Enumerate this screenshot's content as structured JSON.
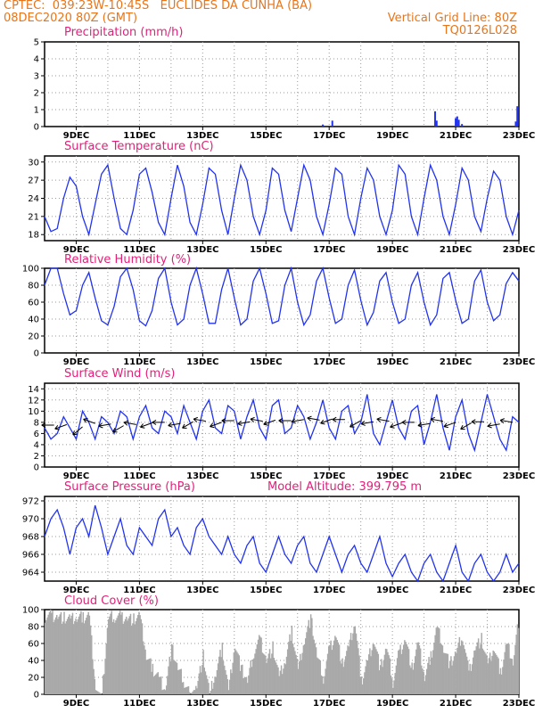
{
  "header": {
    "line1_left": "CPTEC:  039:23W-10:45S   EUCLIDES DA CUNHA (BA)",
    "line2_left": "08DEC2020 80Z (GMT)",
    "line2_right": "Vertical Grid Line: 80Z",
    "line3_right": "TQ0126L028"
  },
  "colors": {
    "line": "#2233ee",
    "title": "#e0217a",
    "header": "#e8751a",
    "cloud": "#a9a9a9",
    "wind_arrow": "#000000"
  },
  "chart_data": [
    {
      "id": "precip",
      "type": "bar",
      "title": "Precipitation (mm/h)",
      "x_ticks": [
        "9DEC",
        "11DEC",
        "13DEC",
        "15DEC",
        "17DEC",
        "19DEC",
        "21DEC",
        "23DEC"
      ],
      "ylim": [
        0,
        5
      ],
      "y_ticks": [
        0,
        1,
        2,
        3,
        4,
        5
      ],
      "grid": true,
      "x": [
        8.75,
        9.2,
        16.8,
        17.1,
        20.35,
        20.4,
        21.0,
        21.05,
        21.1,
        21.2,
        22.9,
        22.95
      ],
      "values": [
        0.05,
        0.03,
        0.12,
        0.35,
        0.9,
        0.35,
        0.5,
        0.6,
        0.4,
        0.15,
        0.3,
        1.2
      ]
    },
    {
      "id": "temp",
      "type": "line",
      "title": "Surface Temperature (nC)",
      "x_ticks": [
        "9DEC",
        "11DEC",
        "13DEC",
        "15DEC",
        "17DEC",
        "19DEC",
        "21DEC",
        "23DEC"
      ],
      "ylim": [
        17,
        31
      ],
      "y_ticks": [
        18,
        21,
        24,
        27,
        30
      ],
      "grid": true,
      "x": [
        8.0,
        8.2,
        8.4,
        8.6,
        8.8,
        9.0,
        9.2,
        9.4,
        9.6,
        9.8,
        10.0,
        10.2,
        10.4,
        10.6,
        10.8,
        11.0,
        11.2,
        11.4,
        11.6,
        11.8,
        12.0,
        12.2,
        12.4,
        12.6,
        12.8,
        13.0,
        13.2,
        13.4,
        13.6,
        13.8,
        14.0,
        14.2,
        14.4,
        14.6,
        14.8,
        15.0,
        15.2,
        15.4,
        15.6,
        15.8,
        16.0,
        16.2,
        16.4,
        16.6,
        16.8,
        17.0,
        17.2,
        17.4,
        17.6,
        17.8,
        18.0,
        18.2,
        18.4,
        18.6,
        18.8,
        19.0,
        19.2,
        19.4,
        19.6,
        19.8,
        20.0,
        20.2,
        20.4,
        20.6,
        20.8,
        21.0,
        21.2,
        21.4,
        21.6,
        21.8,
        22.0,
        22.2,
        22.4,
        22.6,
        22.8,
        23.0
      ],
      "values": [
        21,
        18.5,
        19,
        24,
        27.5,
        26,
        21,
        18,
        23,
        28,
        29.5,
        24,
        19,
        18,
        22,
        28,
        29,
        25,
        20,
        18,
        24,
        29.5,
        26,
        20,
        18,
        23,
        29,
        28,
        22,
        18,
        24,
        29.5,
        27,
        21,
        18,
        22,
        29,
        28,
        22,
        18.5,
        24,
        29.5,
        27,
        21,
        18,
        23,
        29,
        28,
        21,
        18,
        24,
        29,
        27,
        21,
        18,
        22,
        29.5,
        28,
        21,
        18,
        24,
        29.5,
        27,
        21,
        18,
        23,
        29,
        27,
        21,
        18.5,
        24,
        28.5,
        27,
        21,
        18,
        22
      ]
    },
    {
      "id": "rh",
      "type": "line",
      "title": "Relative Humidity (%)",
      "x_ticks": [
        "9DEC",
        "11DEC",
        "13DEC",
        "15DEC",
        "17DEC",
        "19DEC",
        "21DEC",
        "23DEC"
      ],
      "ylim": [
        0,
        100
      ],
      "y_ticks": [
        0,
        20,
        40,
        60,
        80,
        100
      ],
      "grid": true,
      "x": [
        8.0,
        8.2,
        8.4,
        8.6,
        8.8,
        9.0,
        9.2,
        9.4,
        9.6,
        9.8,
        10.0,
        10.2,
        10.4,
        10.6,
        10.8,
        11.0,
        11.2,
        11.4,
        11.6,
        11.8,
        12.0,
        12.2,
        12.4,
        12.6,
        12.8,
        13.0,
        13.2,
        13.4,
        13.6,
        13.8,
        14.0,
        14.2,
        14.4,
        14.6,
        14.8,
        15.0,
        15.2,
        15.4,
        15.6,
        15.8,
        16.0,
        16.2,
        16.4,
        16.6,
        16.8,
        17.0,
        17.2,
        17.4,
        17.6,
        17.8,
        18.0,
        18.2,
        18.4,
        18.6,
        18.8,
        19.0,
        19.2,
        19.4,
        19.6,
        19.8,
        20.0,
        20.2,
        20.4,
        20.6,
        20.8,
        21.0,
        21.2,
        21.4,
        21.6,
        21.8,
        22.0,
        22.2,
        22.4,
        22.6,
        22.8,
        23.0
      ],
      "values": [
        80,
        100,
        100,
        70,
        45,
        50,
        80,
        95,
        65,
        38,
        33,
        55,
        90,
        100,
        75,
        38,
        32,
        50,
        88,
        100,
        60,
        33,
        40,
        80,
        100,
        70,
        35,
        35,
        75,
        100,
        65,
        33,
        40,
        85,
        100,
        70,
        35,
        38,
        80,
        100,
        60,
        33,
        45,
        85,
        100,
        65,
        35,
        40,
        80,
        98,
        62,
        33,
        48,
        85,
        95,
        60,
        35,
        40,
        80,
        95,
        60,
        33,
        45,
        88,
        95,
        62,
        35,
        40,
        85,
        98,
        60,
        38,
        45,
        82,
        95,
        85
      ]
    },
    {
      "id": "wind",
      "type": "line",
      "title": "Surface Wind (m/s)",
      "x_ticks": [
        "9DEC",
        "11DEC",
        "13DEC",
        "15DEC",
        "17DEC",
        "19DEC",
        "21DEC",
        "23DEC"
      ],
      "ylim": [
        0,
        15
      ],
      "y_ticks": [
        0,
        2,
        4,
        6,
        8,
        10,
        12,
        14
      ],
      "grid": true,
      "x": [
        8.0,
        8.2,
        8.4,
        8.6,
        8.8,
        9.0,
        9.2,
        9.4,
        9.6,
        9.8,
        10.0,
        10.2,
        10.4,
        10.6,
        10.8,
        11.0,
        11.2,
        11.4,
        11.6,
        11.8,
        12.0,
        12.2,
        12.4,
        12.6,
        12.8,
        13.0,
        13.2,
        13.4,
        13.6,
        13.8,
        14.0,
        14.2,
        14.4,
        14.6,
        14.8,
        15.0,
        15.2,
        15.4,
        15.6,
        15.8,
        16.0,
        16.2,
        16.4,
        16.6,
        16.8,
        17.0,
        17.2,
        17.4,
        17.6,
        17.8,
        18.0,
        18.2,
        18.4,
        18.6,
        18.8,
        19.0,
        19.2,
        19.4,
        19.6,
        19.8,
        20.0,
        20.2,
        20.4,
        20.6,
        20.8,
        21.0,
        21.2,
        21.4,
        21.6,
        21.8,
        22.0,
        22.2,
        22.4,
        22.6,
        22.8,
        23.0
      ],
      "values": [
        7,
        5,
        6,
        9,
        7,
        5,
        10,
        8,
        5,
        9,
        8,
        6,
        10,
        9,
        5,
        9,
        11,
        7,
        6,
        10,
        9,
        6,
        11,
        8,
        5,
        10,
        12,
        7,
        6,
        11,
        10,
        5,
        9,
        12,
        7,
        5,
        11,
        12,
        6,
        7,
        11,
        9,
        5,
        8,
        12,
        7,
        5,
        10,
        11,
        6,
        8,
        13,
        6,
        4,
        8,
        12,
        7,
        5,
        10,
        11,
        4,
        8,
        13,
        7,
        3,
        9,
        12,
        6,
        3,
        8,
        13,
        9,
        5,
        3,
        9,
        8
      ],
      "arrows_x": [
        8.3,
        8.7,
        9.2,
        9.6,
        10.1,
        10.5,
        10.9,
        11.4,
        11.8,
        12.3,
        12.7,
        13.1,
        13.6,
        14.0,
        14.5,
        14.9,
        15.3,
        15.8,
        16.2,
        16.7,
        17.1,
        17.5,
        18.0,
        18.4,
        18.9,
        19.3,
        19.7,
        20.2,
        20.6,
        21.0,
        21.5,
        21.9,
        22.4,
        22.8
      ],
      "arrows_y": [
        7.5,
        7.6,
        7.2,
        7.8,
        7.7,
        7.4,
        7.6,
        7.9,
        8.0,
        7.8,
        8.1,
        8.2,
        8.0,
        8.3,
        8.1,
        8.2,
        8.4,
        8.3,
        8.5,
        8.4,
        8.6,
        8.5,
        8.3,
        8.1,
        8.2,
        7.9,
        8.0,
        7.8,
        8.2,
        8.0,
        7.9,
        8.1,
        7.7,
        8.0
      ],
      "arrows_dir_deg": [
        180,
        200,
        220,
        160,
        190,
        210,
        170,
        200,
        180,
        190,
        210,
        170,
        200,
        180,
        190,
        170,
        200,
        180,
        190,
        170,
        200,
        180,
        210,
        190,
        170,
        200,
        180,
        190,
        170,
        200,
        210,
        180,
        190,
        170
      ]
    },
    {
      "id": "pres",
      "type": "line",
      "title": "Surface Pressure (hPa)",
      "annotation": "Model Altitude: 399.795 m",
      "x_ticks": [
        "9DEC",
        "11DEC",
        "13DEC",
        "15DEC",
        "17DEC",
        "19DEC",
        "21DEC",
        "23DEC"
      ],
      "ylim": [
        963,
        972.5
      ],
      "y_ticks": [
        964,
        966,
        968,
        970,
        972
      ],
      "grid": true,
      "x": [
        8.0,
        8.2,
        8.4,
        8.6,
        8.8,
        9.0,
        9.2,
        9.4,
        9.6,
        9.8,
        10.0,
        10.2,
        10.4,
        10.6,
        10.8,
        11.0,
        11.2,
        11.4,
        11.6,
        11.8,
        12.0,
        12.2,
        12.4,
        12.6,
        12.8,
        13.0,
        13.2,
        13.4,
        13.6,
        13.8,
        14.0,
        14.2,
        14.4,
        14.6,
        14.8,
        15.0,
        15.2,
        15.4,
        15.6,
        15.8,
        16.0,
        16.2,
        16.4,
        16.6,
        16.8,
        17.0,
        17.2,
        17.4,
        17.6,
        17.8,
        18.0,
        18.2,
        18.4,
        18.6,
        18.8,
        19.0,
        19.2,
        19.4,
        19.6,
        19.8,
        20.0,
        20.2,
        20.4,
        20.6,
        20.8,
        21.0,
        21.2,
        21.4,
        21.6,
        21.8,
        22.0,
        22.2,
        22.4,
        22.6,
        22.8,
        23.0
      ],
      "values": [
        968,
        970,
        971,
        969,
        966,
        969,
        970,
        968,
        971.5,
        969,
        966,
        968,
        970,
        967,
        966,
        969,
        968,
        967,
        970,
        971,
        968,
        969,
        967,
        966,
        969,
        970,
        968,
        967,
        966,
        968,
        966,
        965,
        967,
        968,
        965,
        964,
        966,
        968,
        966,
        965,
        967,
        968,
        965,
        964,
        966,
        968,
        966,
        964,
        966,
        967,
        965,
        964,
        966,
        968,
        965,
        963.5,
        965,
        966,
        964,
        963,
        965,
        966,
        964,
        963,
        965,
        967,
        964,
        963,
        965,
        966,
        964,
        963,
        964,
        966,
        964,
        965
      ]
    },
    {
      "id": "cloud",
      "type": "area",
      "title": "Cloud Cover (%)",
      "x_ticks": [
        "9DEC",
        "11DEC",
        "13DEC",
        "15DEC",
        "17DEC",
        "19DEC",
        "21DEC",
        "23DEC"
      ],
      "ylim": [
        0,
        100
      ],
      "y_ticks": [
        0,
        20,
        40,
        60,
        80,
        100
      ],
      "grid": true,
      "x": [
        8.0,
        8.2,
        8.4,
        8.6,
        8.8,
        9.0,
        9.2,
        9.4,
        9.6,
        9.8,
        10.0,
        10.2,
        10.4,
        10.6,
        10.8,
        11.0,
        11.2,
        11.4,
        11.6,
        11.8,
        12.0,
        12.2,
        12.4,
        12.6,
        12.8,
        13.0,
        13.2,
        13.4,
        13.6,
        13.8,
        14.0,
        14.2,
        14.4,
        14.6,
        14.8,
        15.0,
        15.2,
        15.4,
        15.6,
        15.8,
        16.0,
        16.2,
        16.4,
        16.6,
        16.8,
        17.0,
        17.2,
        17.4,
        17.6,
        17.8,
        18.0,
        18.2,
        18.4,
        18.6,
        18.8,
        19.0,
        19.2,
        19.4,
        19.6,
        19.8,
        20.0,
        20.2,
        20.4,
        20.6,
        20.8,
        21.0,
        21.2,
        21.4,
        21.6,
        21.8,
        22.0,
        22.2,
        22.4,
        22.6,
        22.8,
        23.0
      ],
      "values": [
        92,
        93,
        92,
        90,
        88,
        90,
        91,
        93,
        5,
        0,
        90,
        92,
        91,
        90,
        88,
        92,
        45,
        30,
        20,
        5,
        55,
        30,
        15,
        0,
        10,
        45,
        0,
        25,
        55,
        5,
        60,
        30,
        15,
        50,
        65,
        40,
        55,
        20,
        40,
        75,
        30,
        65,
        90,
        45,
        20,
        55,
        70,
        35,
        55,
        85,
        15,
        40,
        65,
        30,
        55,
        15,
        50,
        65,
        30,
        60,
        20,
        45,
        80,
        55,
        35,
        50,
        70,
        25,
        55,
        65,
        35,
        55,
        25,
        60,
        40,
        95
      ]
    }
  ]
}
